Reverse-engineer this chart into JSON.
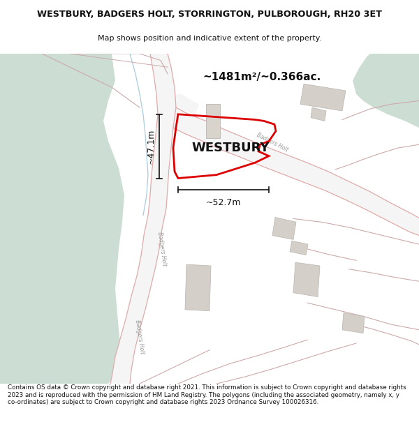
{
  "title_line1": "WESTBURY, BADGERS HOLT, STORRINGTON, PULBOROUGH, RH20 3ET",
  "title_line2": "Map shows position and indicative extent of the property.",
  "area_text": "~1481m²/~0.366ac.",
  "width_label": "~52.7m",
  "height_label": "~47.1m",
  "property_label": "WESTBURY",
  "footer_text": "Contains OS data © Crown copyright and database right 2021. This information is subject to Crown copyright and database rights 2023 and is reproduced with the permission of HM Land Registry. The polygons (including the associated geometry, namely x, y co-ordinates) are subject to Crown copyright and database rights 2023 Ordnance Survey 100026316.",
  "bg_color": "#eef2ee",
  "green_color": "#ccddd3",
  "white_road_color": "#f5f5f5",
  "road_line_color": "#e0aaaa",
  "road_line_color2": "#ccaaaa",
  "building_color": "#d4cfc8",
  "building_edge": "#b8b4ae",
  "property_color": "#dd0000",
  "dim_color": "#111111",
  "blue_line_color": "#aaccdd",
  "fig_width": 6.0,
  "fig_height": 6.25
}
